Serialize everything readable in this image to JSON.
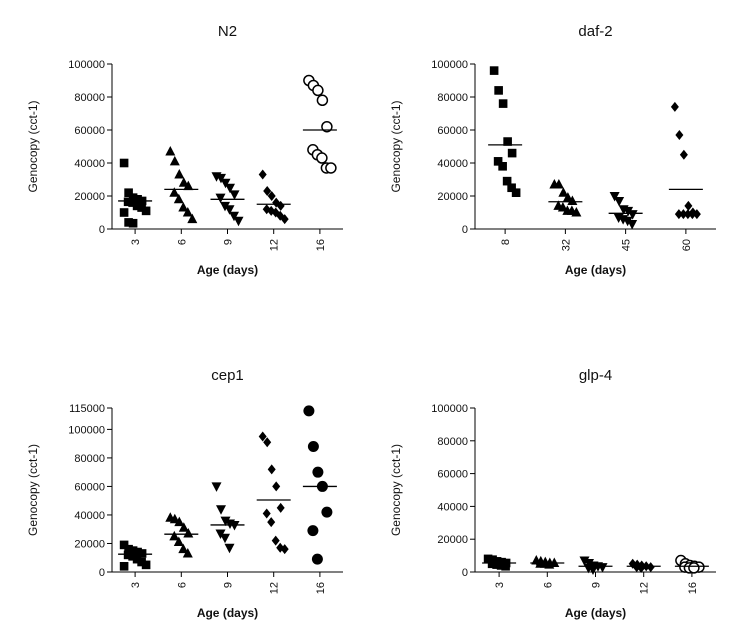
{
  "chart_data": [
    {
      "type": "scatter",
      "title": "N2",
      "xlabel": "Age (days)",
      "ylabel": "Genocopy (cct-1)",
      "ylim": [
        0,
        100000
      ],
      "yticks": [
        "0",
        "20000",
        "40000",
        "60000",
        "80000",
        "100000"
      ],
      "series": [
        {
          "category": "3",
          "marker": "square",
          "mean": 17000,
          "values": [
            40000,
            22000,
            19000,
            18000,
            17000,
            16500,
            16000,
            14000,
            13000,
            11000,
            10000,
            4000,
            3500
          ]
        },
        {
          "category": "6",
          "marker": "triangle-up",
          "mean": 24000,
          "values": [
            47000,
            41000,
            33000,
            28000,
            26000,
            22000,
            18000,
            13000,
            10000,
            6000
          ]
        },
        {
          "category": "9",
          "marker": "triangle-down",
          "mean": 18000,
          "values": [
            32000,
            31000,
            28000,
            25000,
            21000,
            19000,
            14000,
            12000,
            8000,
            5000
          ]
        },
        {
          "category": "12",
          "marker": "diamond",
          "mean": 15000,
          "values": [
            33000,
            23000,
            20000,
            16000,
            14000,
            12000,
            11000,
            10000,
            8000,
            6000
          ]
        },
        {
          "category": "16",
          "marker": "circle-open",
          "mean": 60000,
          "values": [
            90000,
            87000,
            84000,
            78000,
            62000,
            48000,
            45000,
            43000,
            37000,
            37000
          ]
        }
      ]
    },
    {
      "type": "scatter",
      "title": "daf-2",
      "xlabel": "Age (days)",
      "ylabel": "Genocopy (cct-1)",
      "ylim": [
        0,
        100000
      ],
      "yticks": [
        "0",
        "20000",
        "40000",
        "60000",
        "80000",
        "100000"
      ],
      "series": [
        {
          "category": "8",
          "marker": "square",
          "mean": 51000,
          "values": [
            96000,
            84000,
            76000,
            53000,
            46000,
            41000,
            38000,
            29000,
            25000,
            22000
          ]
        },
        {
          "category": "32",
          "marker": "triangle-up",
          "mean": 16500,
          "values": [
            27000,
            27000,
            22000,
            19000,
            17000,
            14000,
            13000,
            11000,
            11000,
            10000
          ]
        },
        {
          "category": "45",
          "marker": "triangle-down",
          "mean": 9500,
          "values": [
            20000,
            17000,
            12000,
            11000,
            9000,
            7000,
            6000,
            5000,
            3000
          ]
        },
        {
          "category": "60",
          "marker": "diamond",
          "mean": 24000,
          "values": [
            74000,
            57000,
            45000,
            14000,
            10000,
            9000,
            9000,
            9000,
            9000,
            9000
          ]
        }
      ]
    },
    {
      "type": "scatter",
      "title": "cep1",
      "xlabel": "Age (days)",
      "ylabel": "Genocopy (cct-1)",
      "ylim": [
        0,
        115000
      ],
      "yticks": [
        "0",
        "20000",
        "40000",
        "60000",
        "80000",
        "100000",
        "115000"
      ],
      "series": [
        {
          "category": "3",
          "marker": "square",
          "mean": 12500,
          "values": [
            19000,
            16000,
            15000,
            14000,
            13000,
            12000,
            11000,
            9000,
            7000,
            5000,
            4000
          ]
        },
        {
          "category": "6",
          "marker": "triangle-up",
          "mean": 26500,
          "values": [
            38000,
            37000,
            35000,
            31000,
            27000,
            25000,
            21000,
            16000,
            13000
          ]
        },
        {
          "category": "9",
          "marker": "triangle-down",
          "mean": 33000,
          "values": [
            60000,
            44000,
            36000,
            34000,
            33000,
            27000,
            24000,
            17000
          ]
        },
        {
          "category": "12",
          "marker": "diamond",
          "mean": 50500,
          "values": [
            95000,
            91000,
            72000,
            60000,
            45000,
            41000,
            35000,
            22000,
            17000,
            16000
          ]
        },
        {
          "category": "16",
          "marker": "circle",
          "mean": 60000,
          "values": [
            113000,
            88000,
            70000,
            60000,
            42000,
            29000,
            9000
          ]
        }
      ]
    },
    {
      "type": "scatter",
      "title": "glp-4",
      "xlabel": "Age (days)",
      "ylabel": "Genocopy (cct-1)",
      "ylim": [
        0,
        100000
      ],
      "yticks": [
        "0",
        "20000",
        "40000",
        "60000",
        "80000",
        "100000"
      ],
      "series": [
        {
          "category": "3",
          "marker": "square",
          "mean": 5500,
          "values": [
            8000,
            7500,
            6500,
            6000,
            5500,
            5000,
            4500,
            4000,
            3500
          ]
        },
        {
          "category": "6",
          "marker": "triangle-up",
          "mean": 5500,
          "values": [
            7000,
            6500,
            6000,
            5500,
            5500,
            5000,
            5000,
            4500
          ]
        },
        {
          "category": "9",
          "marker": "triangle-down",
          "mean": 3500,
          "values": [
            7000,
            5500,
            4000,
            3500,
            3000,
            2500,
            1500
          ]
        },
        {
          "category": "12",
          "marker": "diamond",
          "mean": 3500,
          "values": [
            5000,
            4500,
            4000,
            3500,
            3000,
            3000,
            2500
          ]
        },
        {
          "category": "16",
          "marker": "circle-open",
          "mean": 3500,
          "values": [
            7000,
            5000,
            4000,
            3500,
            3000,
            3000,
            2500,
            2500
          ]
        }
      ]
    }
  ]
}
